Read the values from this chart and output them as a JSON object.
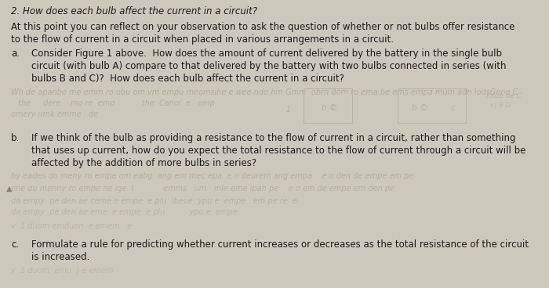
{
  "background_color": "#ccc8bc",
  "title_italic": "2. How does each bulb affect the current in a circuit?",
  "intro_line1": "At this point you can reflect on your observation to ask the question of whether or not bulbs offer resistance",
  "intro_line2": "to the flow of current in a circuit when placed in various arrangements in a circuit.",
  "qa_label": "a.",
  "qa_text_line1": "Consider Figure 1 above.  How does the amount of current delivered by the battery in the single bulb",
  "qa_text_line2": "circuit (with bulb A) compare to that delivered by the battery with two bulbs connected in series (with",
  "qa_text_line3": "bulbs B and C)?  How does each bulb affect the current in a circuit?",
  "qb_label": "b.",
  "qb_text_line1": "If we think of the bulb as providing a resistance to the flow of current in a circuit, rather than something",
  "qb_text_line2": "that uses up current, how do you expect the total resistance to the flow of current through a circuit will be",
  "qb_text_line3": "affected by the addition of more bulbs in series?",
  "qc_label": "c.",
  "qc_text_line1": "Formulate a rule for predicting whether current increases or decreases as the total resistance of the circuit",
  "qc_text_line2": "is increased.",
  "hw_color": "#a09888",
  "main_text_color": "#1c1c1c",
  "fs": 8.5
}
